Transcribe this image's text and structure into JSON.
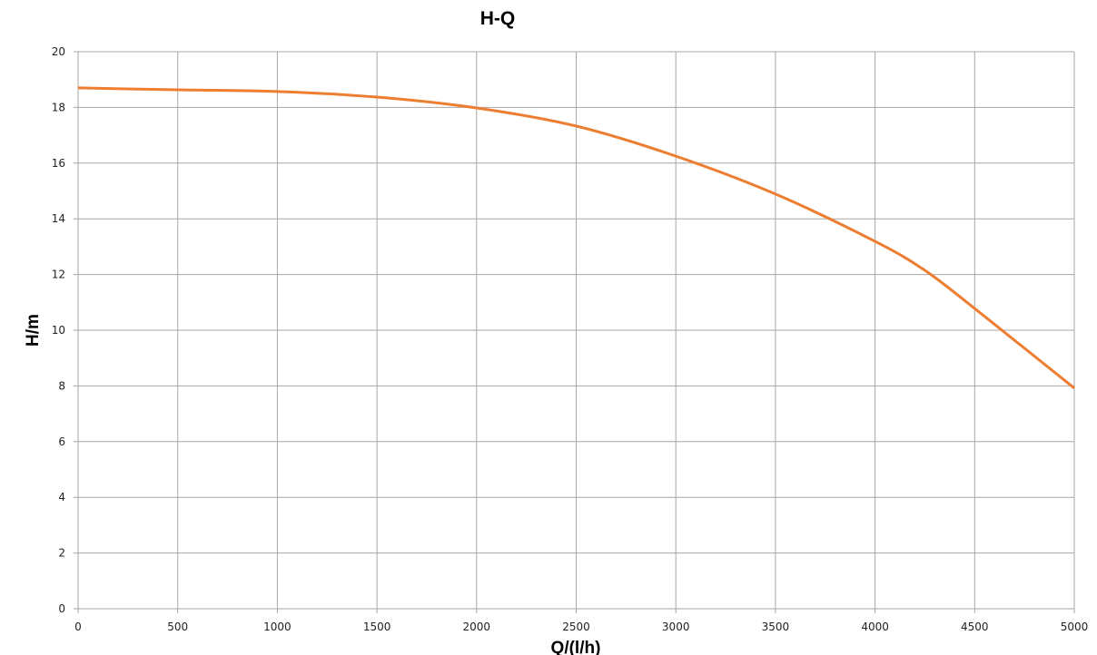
{
  "chart_data": {
    "type": "line",
    "title": "H-Q",
    "xlabel": "Q/(l/h)",
    "ylabel": "H/m",
    "xlim": [
      0,
      5000
    ],
    "ylim": [
      0,
      20
    ],
    "xticks": [
      0,
      500,
      1000,
      1500,
      2000,
      2500,
      3000,
      3500,
      4000,
      4500,
      5000
    ],
    "yticks": [
      0,
      2,
      4,
      6,
      8,
      10,
      12,
      14,
      16,
      18,
      20
    ],
    "grid": true,
    "legend": "none",
    "line_color": "#ED7D31",
    "grid_color": "#A6A6A6",
    "series": [
      {
        "x": [
          0,
          500,
          1000,
          1500,
          2000,
          2500,
          3000,
          3500,
          4000,
          4250,
          4500,
          5000
        ],
        "y": [
          18.7,
          18.63,
          18.57,
          18.37,
          17.98,
          17.33,
          16.25,
          14.89,
          13.19,
          12.15,
          10.78,
          7.92
        ]
      }
    ]
  }
}
